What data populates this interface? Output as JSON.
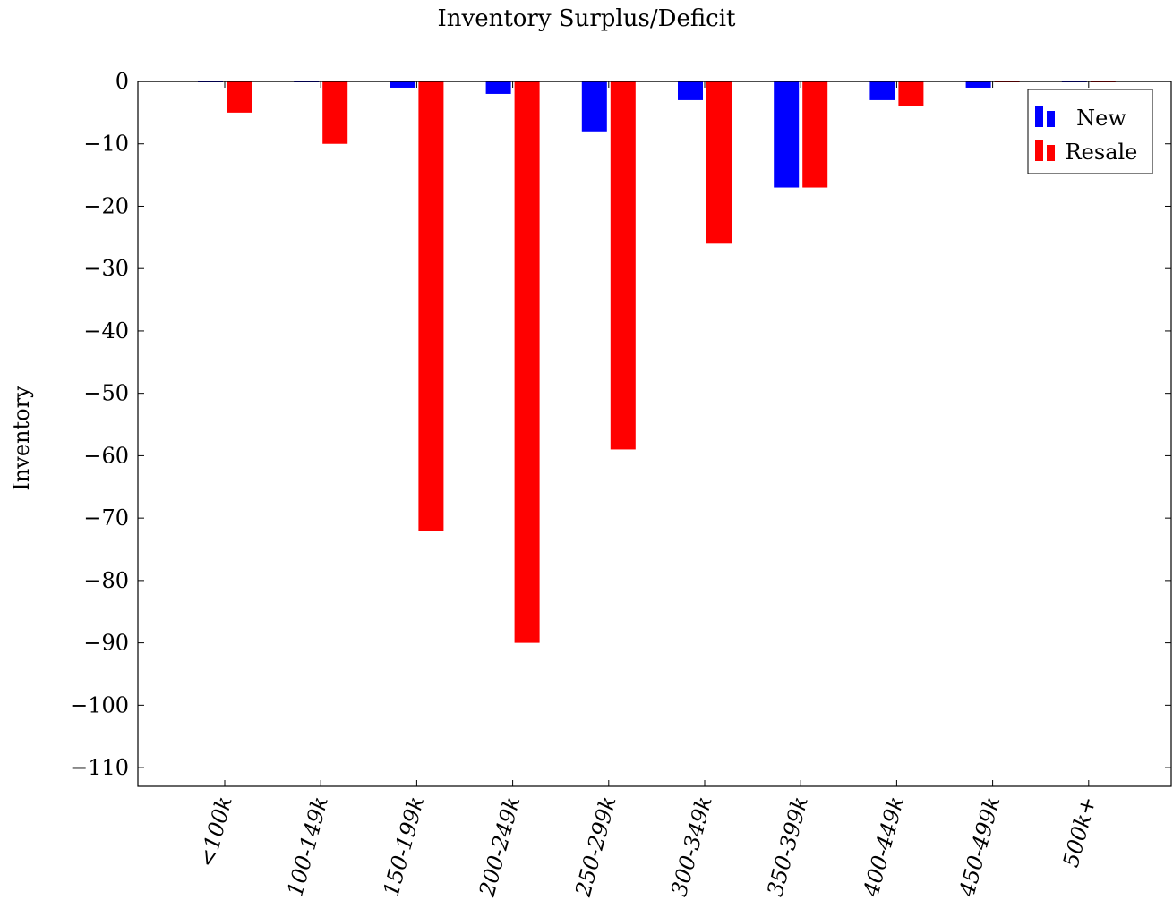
{
  "chart_data": {
    "type": "bar",
    "title": "Inventory Surplus/Deficit",
    "xlabel": "",
    "ylabel": "Inventory",
    "ylim": [
      -113,
      0
    ],
    "yticks": [
      0,
      -10,
      -20,
      -30,
      -40,
      -50,
      -60,
      -70,
      -80,
      -90,
      -100,
      -110
    ],
    "ytick_labels": [
      "0",
      "−10",
      "−20",
      "−30",
      "−40",
      "−50",
      "−60",
      "−70",
      "−80",
      "−90",
      "−100",
      "−110"
    ],
    "categories": [
      "<100k",
      "100-149k",
      "150-199k",
      "200-249k",
      "250-299k",
      "300-349k",
      "350-399k",
      "400-449k",
      "450-499k",
      "500k+"
    ],
    "series": [
      {
        "name": "New",
        "color": "#0000ff",
        "values": [
          0,
          0,
          -1,
          -2,
          -8,
          -3,
          -17,
          -3,
          -1,
          0
        ]
      },
      {
        "name": "Resale",
        "color": "#ff0000",
        "values": [
          -5,
          -10,
          -72,
          -90,
          -59,
          -26,
          -17,
          -4,
          0,
          0
        ]
      }
    ],
    "legend_position": "top-right",
    "grid": false
  }
}
